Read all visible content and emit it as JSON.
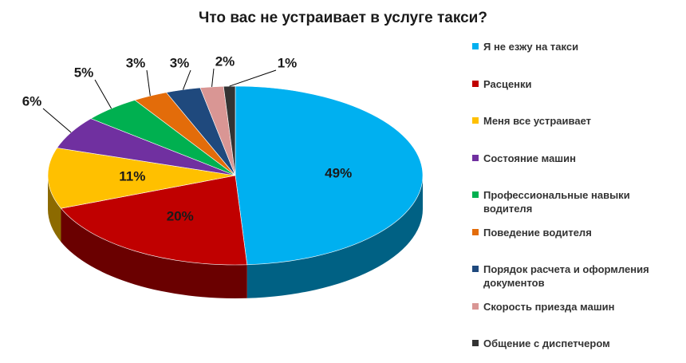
{
  "chart_data": {
    "type": "pie",
    "title": "Что вас не устраивает в услуге такси?",
    "categories": [
      "Я не езжу на такси",
      "Расценки",
      "Меня все устраивает",
      "Состояние машин",
      "Профессиональные навыки водителя",
      "Поведение водителя",
      "Порядок расчета и оформления документов",
      "Скорость приезда машин",
      "Общение с диспетчером"
    ],
    "values": [
      49,
      20,
      11,
      6,
      5,
      3,
      3,
      2,
      1
    ],
    "value_labels": [
      "49%",
      "20%",
      "11%",
      "6%",
      "5%",
      "3%",
      "3%",
      "2%",
      "1%"
    ],
    "colors": [
      "#00b0f0",
      "#c00000",
      "#ffc000",
      "#7030a0",
      "#00b050",
      "#e36c0a",
      "#1f497d",
      "#d99694",
      "#333333"
    ],
    "legend": "right"
  }
}
